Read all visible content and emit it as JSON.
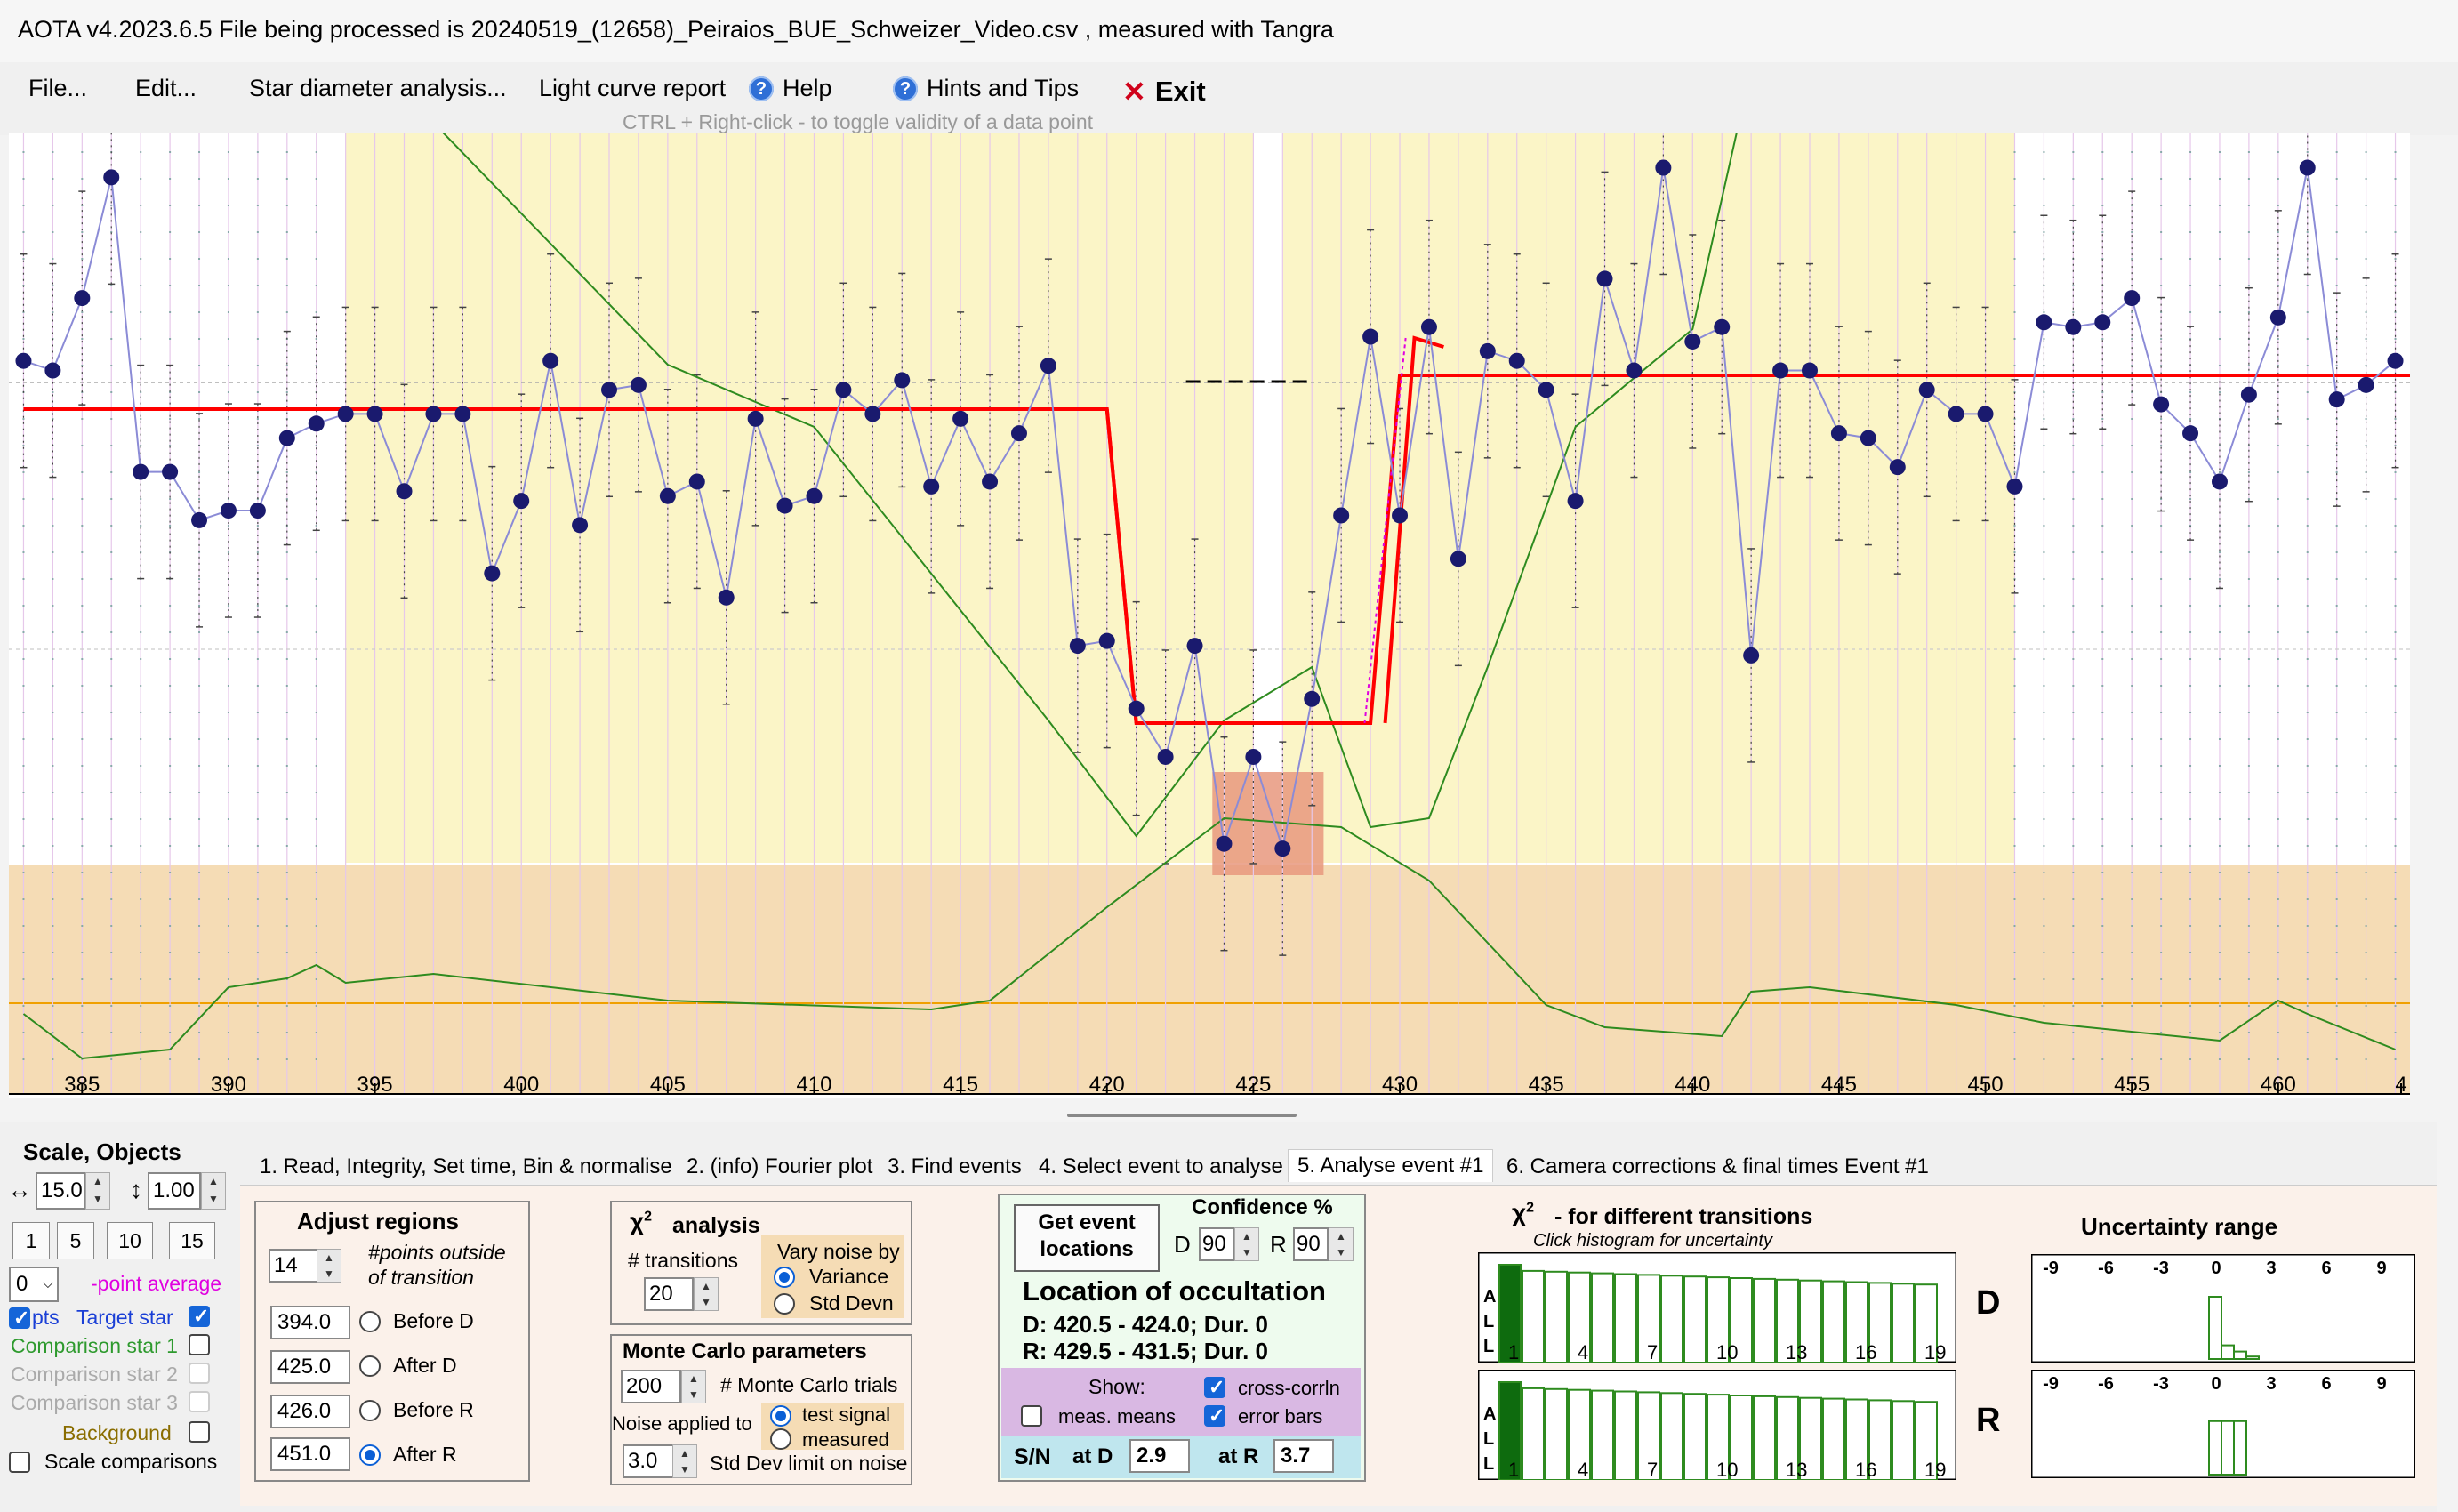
{
  "window": {
    "title": "AOTA v4.2023.6.5    File being processed is  20240519_(12658)_Peiraios_BUE_Schweizer_Video.csv ,  measured with Tangra"
  },
  "menu": {
    "file": "File...",
    "edit": "Edit...",
    "star_diameter": "Star diameter analysis...",
    "light_curve": "Light curve report",
    "help": "Help",
    "hints": "Hints and Tips",
    "exit": "Exit"
  },
  "hint_text": "CTRL + Right-click   -   to toggle validity of a data point",
  "colors": {
    "data_point": "#1a1a6e",
    "model_line": "#ff0000",
    "event_region": "#fbf5c7",
    "lower_band": "#f5dcb5",
    "green_curve": "#2e8b1f"
  },
  "chart_data": {
    "type": "line",
    "x_ticks": [
      "385",
      "390",
      "395",
      "400",
      "405",
      "410",
      "415",
      "420",
      "425",
      "430",
      "435",
      "440",
      "445",
      "450",
      "455",
      "460",
      "4"
    ],
    "xlim": [
      382.5,
      464.5
    ],
    "regions": {
      "before_D_start": 394.0,
      "after_D_start": 425.0,
      "before_R_start": 426.0,
      "after_R_start": 451.0
    },
    "series": [
      {
        "x": [
          383,
          384,
          385,
          386,
          387,
          388,
          389,
          390,
          391,
          392,
          393,
          394,
          395,
          396,
          397,
          398,
          399,
          400,
          401,
          402,
          403,
          404,
          405,
          406,
          407,
          408,
          409,
          410,
          411,
          412,
          413,
          414,
          415,
          416,
          417,
          418,
          419,
          420,
          421,
          422,
          423,
          424,
          425,
          426,
          427,
          428,
          429,
          430,
          431,
          432,
          433,
          434,
          435,
          436,
          437,
          438,
          439,
          440,
          441,
          442,
          443,
          444,
          445,
          446,
          447,
          448,
          449,
          450,
          451,
          452,
          453,
          454,
          455,
          456,
          457,
          458,
          459,
          460,
          461,
          462,
          463,
          464
        ],
        "values": [
          0.8,
          0.78,
          0.93,
          1.18,
          0.57,
          0.57,
          0.47,
          0.49,
          0.49,
          0.64,
          0.67,
          0.69,
          0.69,
          0.53,
          0.69,
          0.69,
          0.36,
          0.51,
          0.8,
          0.46,
          0.74,
          0.75,
          0.52,
          0.55,
          0.31,
          0.68,
          0.5,
          0.52,
          0.74,
          0.69,
          0.76,
          0.54,
          0.68,
          0.55,
          0.65,
          0.79,
          0.21,
          0.22,
          0.08,
          -0.02,
          0.21,
          -0.2,
          -0.02,
          -0.21,
          0.1,
          0.48,
          0.85,
          0.48,
          0.87,
          0.39,
          0.82,
          0.8,
          0.74,
          0.51,
          0.97,
          0.78,
          1.2,
          0.84,
          0.87,
          0.19,
          0.78,
          0.78,
          0.65,
          0.64,
          0.58,
          0.74,
          0.69,
          0.69,
          0.54,
          0.88,
          0.87,
          0.88,
          0.93,
          0.71,
          0.65,
          0.55,
          0.73,
          0.89,
          1.2,
          0.72,
          0.75,
          0.8
        ]
      }
    ],
    "model": {
      "baseline": 0.7,
      "bottom": 0.05,
      "upper_after_R": 0.77,
      "D": 422.5,
      "R": 430.0
    }
  },
  "scale_objects": {
    "title": "Scale,  Objects",
    "h_scale": "15.0",
    "v_scale": "1.00",
    "quick_buttons": [
      "1",
      "5",
      "10",
      "15"
    ],
    "point_average_value": "0",
    "point_average_label": "-point average",
    "pts": "pts",
    "target_star": "Target star",
    "comparison_1": "Comparison star 1",
    "comparison_2": "Comparison star 2",
    "comparison_3": "Comparison star 3",
    "background": "Background",
    "scale_comparisons": "Scale comparisons"
  },
  "tabs": [
    "1.  Read, Integrity, Set time, Bin & normalise",
    "2. (info)  Fourier plot",
    "3. Find events",
    "4. Select event to analyse",
    "5. Analyse event #1",
    "6. Camera corrections & final times Event #1"
  ],
  "adjust_regions": {
    "title": "Adjust regions",
    "points_outside": "14",
    "points_outside_label": "#points outside of transition",
    "before_d_value": "394.0",
    "before_d": "Before D",
    "after_d_value": "425.0",
    "after_d": "After D",
    "before_r_value": "426.0",
    "before_r": "Before R",
    "after_r_value": "451.0",
    "after_r": "After R"
  },
  "chi2": {
    "title": "analysis",
    "transitions_label": "# transitions",
    "transitions_value": "20",
    "vary_noise": "Vary noise by",
    "variance": "Variance",
    "std_devn": "Std Devn"
  },
  "monte_carlo": {
    "title": "Monte Carlo parameters",
    "trials_value": "200",
    "trials_label": "# Monte Carlo trials",
    "noise_applied": "Noise applied to",
    "test_signal": "test signal",
    "measured": "measured",
    "std_limit_value": "3.0",
    "std_limit_label": "Std Dev limit on noise"
  },
  "event": {
    "get_locations": "Get event locations",
    "confidence": "Confidence %",
    "d_label": "D",
    "d_conf": "90",
    "r_label": "R",
    "r_conf": "90",
    "location_title": "Location of occultation",
    "d_line": "D: 420.5 - 424.0; Dur. 0",
    "r_line": "R: 429.5 - 431.5; Dur. 0",
    "show": "Show:",
    "cross_corr": "cross-corrln",
    "meas_means": "meas. means",
    "error_bars": "error bars",
    "sn": "S/N",
    "at_d": "at D",
    "sn_d": "2.9",
    "at_r": "at R",
    "sn_r": "3.7"
  },
  "chi2_transitions": {
    "title": "- for different transitions",
    "subtitle": "Click histogram for uncertainty",
    "all_letters": [
      "A",
      "L",
      "L"
    ],
    "labels": [
      "1",
      "4",
      "7",
      "10",
      "13",
      "16",
      "19"
    ],
    "d_label": "D",
    "r_label": "R"
  },
  "uncertainty": {
    "title": "Uncertainty range",
    "ticks": [
      "-9",
      "-6",
      "-3",
      "0",
      "3",
      "6",
      "9"
    ],
    "d_bars": [
      0.0,
      0.0,
      0.0,
      0.0,
      0.0,
      0.0,
      0.0,
      0.0,
      0.0,
      1.0,
      0.22,
      0.12,
      0.04
    ],
    "r_bars": [
      0.0,
      0.0,
      0.0,
      0.0,
      0.0,
      0.0,
      0.0,
      0.0,
      0.0,
      0.86,
      0.86,
      0.86
    ]
  }
}
